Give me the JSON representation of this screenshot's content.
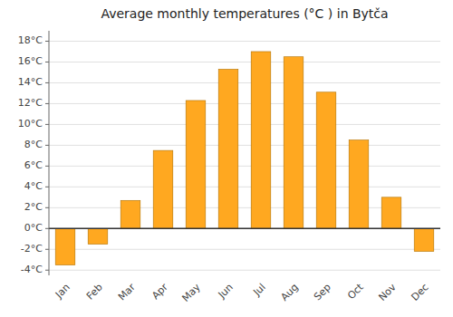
{
  "chart_data": {
    "type": "bar",
    "title": "Average monthly temperatures (°C ) in Bytča",
    "categories": [
      "Jan",
      "Feb",
      "Mar",
      "Apr",
      "May",
      "Jun",
      "Jul",
      "Aug",
      "Sep",
      "Oct",
      "Nov",
      "Dec"
    ],
    "values": [
      -3.5,
      -1.5,
      2.7,
      7.5,
      12.3,
      15.3,
      17.0,
      16.5,
      13.1,
      8.5,
      3.0,
      -2.2
    ],
    "color": "#FFA820",
    "ylim": [
      -4.5,
      19
    ],
    "yticks": [
      {
        "value": -4,
        "label": "-4°C"
      },
      {
        "value": -2,
        "label": "-2°C"
      },
      {
        "value": 0,
        "label": "0°C"
      },
      {
        "value": 2,
        "label": "2°C"
      },
      {
        "value": 4,
        "label": "4°C"
      },
      {
        "value": 6,
        "label": "6°C"
      },
      {
        "value": 8,
        "label": "8°C"
      },
      {
        "value": 10,
        "label": "10°C"
      },
      {
        "value": 12,
        "label": "12°C"
      },
      {
        "value": 14,
        "label": "14°C"
      },
      {
        "value": 16,
        "label": "16°C"
      },
      {
        "value": 18,
        "label": "18°C"
      }
    ],
    "grid": true
  }
}
